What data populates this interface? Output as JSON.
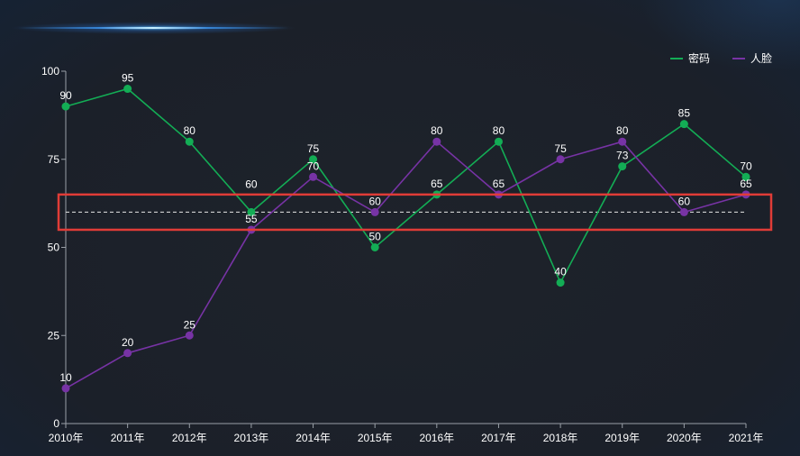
{
  "chart_data": {
    "type": "line",
    "categories": [
      "2010年",
      "2011年",
      "2012年",
      "2013年",
      "2014年",
      "2015年",
      "2016年",
      "2017年",
      "2018年",
      "2019年",
      "2020年",
      "2021年"
    ],
    "series": [
      {
        "name": "密码",
        "color": "#13ad55",
        "values": [
          90,
          95,
          80,
          60,
          75,
          50,
          65,
          80,
          40,
          73,
          85,
          70
        ]
      },
      {
        "name": "人脸",
        "color": "#7733a5",
        "values": [
          10,
          20,
          25,
          55,
          70,
          60,
          80,
          65,
          75,
          80,
          60,
          65
        ]
      }
    ],
    "yticks": [
      0,
      25,
      50,
      75,
      100
    ],
    "ylim": [
      0,
      100
    ],
    "reference_line": 60,
    "highlight_band": [
      55,
      65
    ],
    "legend_position": "top-right",
    "grid": false
  }
}
